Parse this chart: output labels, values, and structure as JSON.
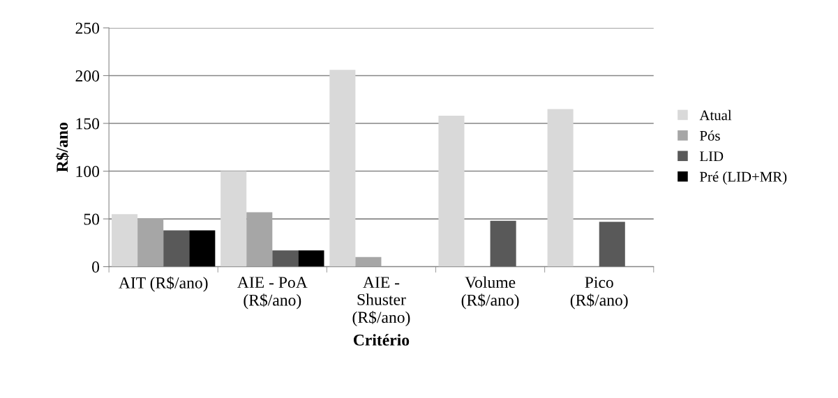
{
  "chart_data": {
    "type": "bar",
    "xlabel": "Critério",
    "ylabel": "R$/ano",
    "categories": [
      "AIT (R$/ano)",
      "AIE - PoA\n(R$/ano)",
      "AIE -\nShuster\n(R$/ano)",
      "Volume\n(R$/ano)",
      "Pico\n(R$/ano)"
    ],
    "series": [
      {
        "name": "Atual",
        "color": "#d9d9d9",
        "values": [
          55,
          100,
          206,
          158,
          165
        ]
      },
      {
        "name": "Pós",
        "color": "#a6a6a6",
        "values": [
          50,
          57,
          10,
          null,
          null
        ]
      },
      {
        "name": "LID",
        "color": "#595959",
        "values": [
          38,
          17,
          null,
          48,
          47
        ]
      },
      {
        "name": "Pré (LID+MR)",
        "color": "#000000",
        "values": [
          38,
          17,
          null,
          null,
          null
        ]
      }
    ],
    "ylim": [
      0,
      250
    ],
    "yticks": [
      0,
      50,
      100,
      150,
      200,
      250
    ],
    "grid": "y",
    "legend": "right"
  }
}
